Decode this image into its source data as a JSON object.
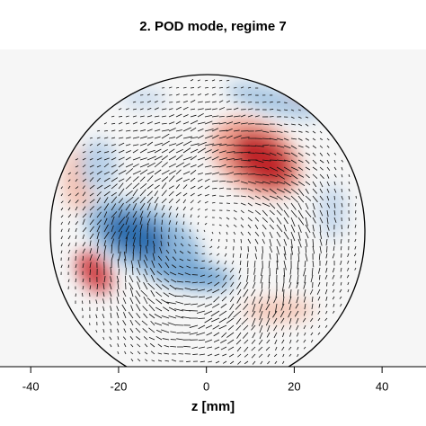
{
  "chart_data": {
    "type": "vector-field",
    "title": "2. POD mode, regime 7",
    "x_label": "z [mm]",
    "xlim": [
      -47,
      50
    ],
    "xticks": [
      -40,
      -20,
      0,
      20,
      40
    ]
  }
}
